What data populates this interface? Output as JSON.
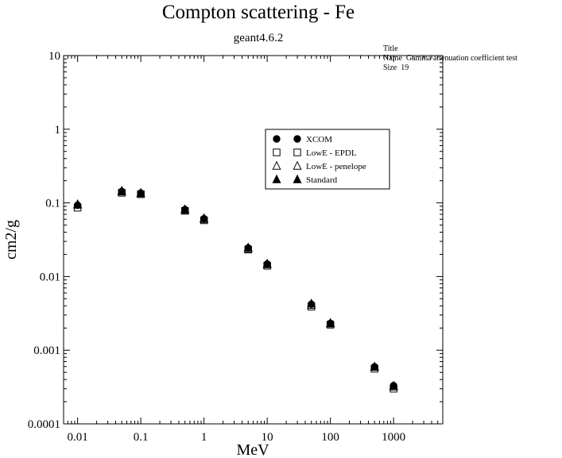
{
  "chart_data": {
    "type": "scatter",
    "title": "Compton scattering - Fe",
    "subtitle": "geant4.6.2",
    "xlabel": "MeV",
    "ylabel": "cm2/g",
    "x_scale": "log",
    "y_scale": "log",
    "xlim": [
      0.006,
      6000
    ],
    "ylim": [
      0.0001,
      10
    ],
    "x_ticks": [
      {
        "value": 0.01,
        "label": "0.01"
      },
      {
        "value": 0.1,
        "label": "0.1"
      },
      {
        "value": 1,
        "label": "1"
      },
      {
        "value": 10,
        "label": "10"
      },
      {
        "value": 100,
        "label": "100"
      },
      {
        "value": 1000,
        "label": "1000"
      }
    ],
    "y_ticks": [
      {
        "value": 10,
        "label": "10"
      },
      {
        "value": 1,
        "label": "1"
      },
      {
        "value": 0.1,
        "label": "0.1"
      },
      {
        "value": 0.01,
        "label": "0.01"
      },
      {
        "value": 0.001,
        "label": "0.001"
      },
      {
        "value": 0.0001,
        "label": "0.0001"
      }
    ],
    "grid": false,
    "legend_position": "upper-right",
    "series": [
      {
        "name": "XCOM",
        "marker": "circle",
        "x": [
          0.01,
          0.05,
          0.1,
          0.5,
          1,
          5,
          10,
          50,
          100,
          500,
          1000
        ],
        "y": [
          0.093,
          0.143,
          0.136,
          0.081,
          0.061,
          0.0245,
          0.0148,
          0.0042,
          0.00232,
          0.000595,
          0.00033
        ]
      },
      {
        "name": "LowE - EPDL",
        "marker": "square",
        "x": [
          0.01,
          0.05,
          0.1,
          0.5,
          1,
          5,
          10,
          50,
          100,
          500,
          1000
        ],
        "y": [
          0.086,
          0.137,
          0.131,
          0.078,
          0.058,
          0.0232,
          0.014,
          0.0039,
          0.00222,
          0.00056,
          0.0003
        ]
      },
      {
        "name": "LowE - penelope",
        "marker": "triangle-open",
        "x": [
          0.01,
          0.05,
          0.1,
          0.5,
          1,
          5,
          10,
          50,
          100,
          500,
          1000
        ],
        "y": [
          0.094,
          0.142,
          0.135,
          0.08,
          0.06,
          0.024,
          0.0146,
          0.0041,
          0.0023,
          0.00059,
          0.00032
        ]
      },
      {
        "name": "Standard",
        "marker": "triangle-filled",
        "x": [
          0.01,
          0.05,
          0.1,
          0.5,
          1,
          5,
          10,
          50,
          100,
          500,
          1000
        ],
        "y": [
          0.096,
          0.146,
          0.137,
          0.082,
          0.062,
          0.0248,
          0.015,
          0.0043,
          0.00235,
          0.0006,
          0.00033
        ]
      }
    ]
  },
  "stats_box": {
    "line1": "Title",
    "line2": "Name  Gamma attenuation coefficient test",
    "line3": "Size  19"
  }
}
